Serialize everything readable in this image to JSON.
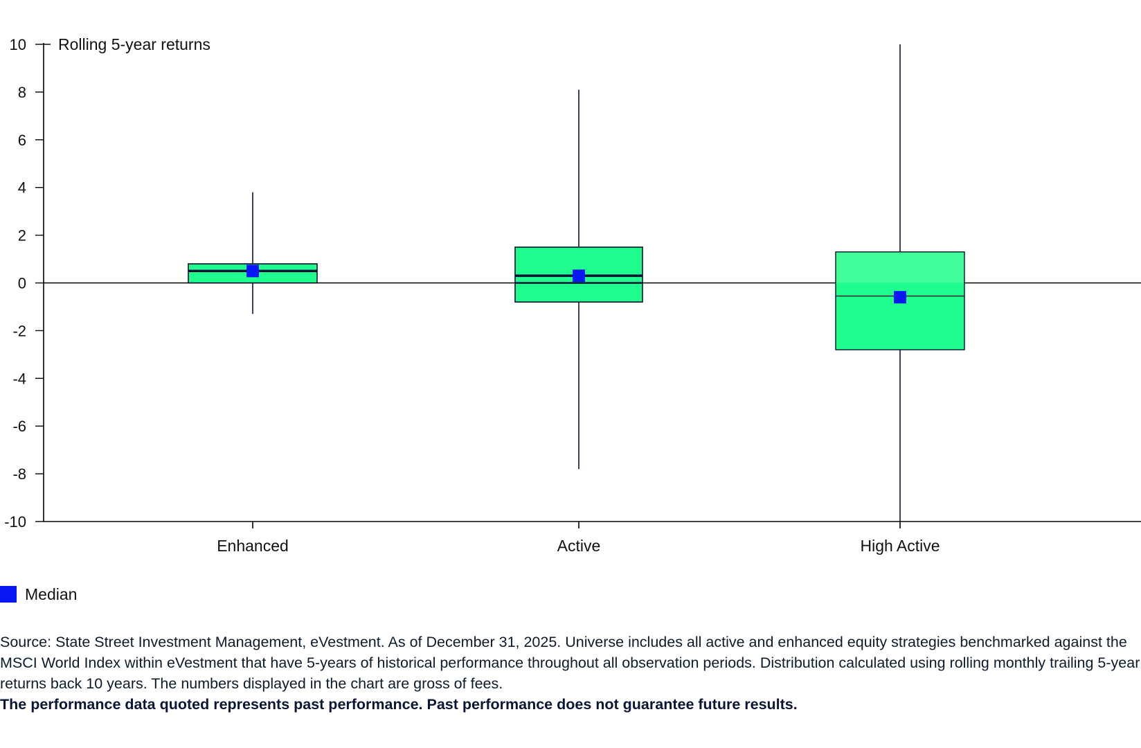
{
  "chart_data": {
    "type": "box",
    "ylabel": "Rolling 5-year returns",
    "xlabel": "",
    "ylim": [
      -10,
      10
    ],
    "y_ticks": [
      10,
      8,
      6,
      4,
      2,
      0,
      -2,
      -4,
      -6,
      -8,
      -10
    ],
    "categories": [
      "Enhanced",
      "Active",
      "High Active"
    ],
    "boxes": [
      {
        "category": "Enhanced",
        "whisker_low": -1.3,
        "q1": 0.0,
        "median": 0.5,
        "q3": 0.8,
        "whisker_high": 3.8,
        "median_marker": 0.5
      },
      {
        "category": "Active",
        "whisker_low": -7.8,
        "q1": -0.8,
        "median": 0.3,
        "q3": 1.5,
        "whisker_high": 8.1,
        "median_marker": 0.3
      },
      {
        "category": "High Active",
        "whisker_low": -10.0,
        "q1": -2.8,
        "median": -0.55,
        "q3": 1.3,
        "whisker_high": 10.0,
        "median_marker": -0.6
      }
    ],
    "legend": {
      "label": "Median",
      "position": "bottom-left"
    },
    "colors": {
      "box_fill": "#1ffd8f",
      "box_fill_light": "#3ffd98",
      "median_marker": "#0718f5",
      "axis": "#000000",
      "line": "#0a1230"
    }
  },
  "footnote": {
    "text": "Source: State Street Investment Management, eVestment. As of December 31, 2025. Universe includes all active and enhanced equity strategies benchmarked against the MSCI World Index within eVestment that have 5-years of historical performance throughout all observation periods. Distribution calculated using rolling monthly trailing 5-year returns back 10 years. The numbers displayed in the chart are gross of fees.",
    "bold_text": "The performance data quoted represents past performance. Past performance does not guarantee future results."
  }
}
